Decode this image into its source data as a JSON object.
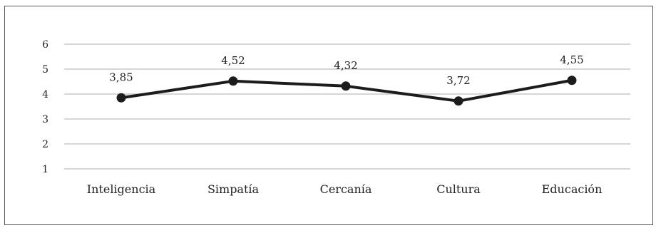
{
  "chart_data": {
    "type": "line",
    "categories": [
      "Inteligencia",
      "Simpatía",
      "Cercanía",
      "Cultura",
      "Educación"
    ],
    "values": [
      3.85,
      4.52,
      4.32,
      3.72,
      4.55
    ],
    "data_labels": [
      "3,85",
      "4,52",
      "4,32",
      "3,72",
      "4,55"
    ],
    "y_ticks": [
      "1",
      "2",
      "3",
      "4",
      "5",
      "6"
    ],
    "ylim": [
      1,
      6
    ],
    "grid": true,
    "legend": "none",
    "colors": {
      "line": "#1c1c1c",
      "grid": "#c8c8c8",
      "frame": "#555555"
    }
  }
}
